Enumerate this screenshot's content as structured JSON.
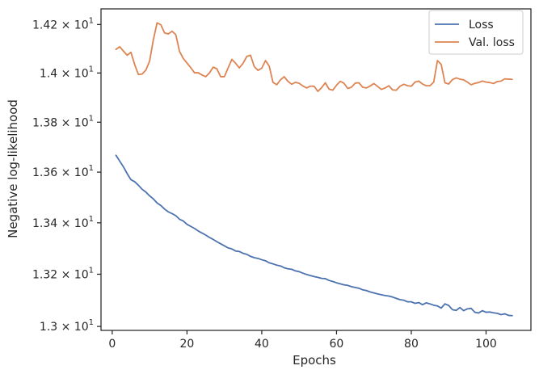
{
  "chart_data": {
    "type": "line",
    "xlabel": "Epochs",
    "ylabel": "Negative log-likelihood",
    "xlim": [
      -3,
      112
    ],
    "ylim": [
      12.985,
      14.265
    ],
    "y_scale": "log",
    "x_ticks": [
      0,
      20,
      40,
      60,
      80,
      100
    ],
    "x_tick_labels": [
      "0",
      "20",
      "40",
      "60",
      "80",
      "100"
    ],
    "y_ticks": [
      {
        "value": 13.0,
        "mantissa": "1.3"
      },
      {
        "value": 13.2,
        "mantissa": "1.32"
      },
      {
        "value": 13.4,
        "mantissa": "1.34"
      },
      {
        "value": 13.6,
        "mantissa": "1.36"
      },
      {
        "value": 13.8,
        "mantissa": "1.38"
      },
      {
        "value": 14.0,
        "mantissa": "1.4"
      },
      {
        "value": 14.2,
        "mantissa": "1.42"
      }
    ],
    "y_tick_multiplier": "× 10",
    "y_tick_exponent": "1",
    "grid": false,
    "legend_position": "top-right",
    "x": [
      1,
      2,
      3,
      4,
      5,
      6,
      7,
      8,
      9,
      10,
      11,
      12,
      13,
      14,
      15,
      16,
      17,
      18,
      19,
      20,
      21,
      22,
      23,
      24,
      25,
      26,
      27,
      28,
      29,
      30,
      31,
      32,
      33,
      34,
      35,
      36,
      37,
      38,
      39,
      40,
      41,
      42,
      43,
      44,
      45,
      46,
      47,
      48,
      49,
      50,
      51,
      52,
      53,
      54,
      55,
      56,
      57,
      58,
      59,
      60,
      61,
      62,
      63,
      64,
      65,
      66,
      67,
      68,
      69,
      70,
      71,
      72,
      73,
      74,
      75,
      76,
      77,
      78,
      79,
      80,
      81,
      82,
      83,
      84,
      85,
      86,
      87,
      88,
      89,
      90,
      91,
      92,
      93,
      94,
      95,
      96,
      97,
      98,
      99,
      100,
      101,
      102,
      103,
      104,
      105,
      106,
      107
    ],
    "series": [
      {
        "name": "Loss",
        "color": "#4c72b0",
        "values": [
          13.667,
          13.644,
          13.621,
          13.594,
          13.57,
          13.562,
          13.548,
          13.532,
          13.521,
          13.506,
          13.494,
          13.478,
          13.468,
          13.454,
          13.443,
          13.436,
          13.428,
          13.414,
          13.407,
          13.394,
          13.386,
          13.378,
          13.368,
          13.36,
          13.352,
          13.343,
          13.335,
          13.326,
          13.318,
          13.31,
          13.302,
          13.298,
          13.29,
          13.288,
          13.281,
          13.277,
          13.269,
          13.264,
          13.261,
          13.256,
          13.252,
          13.244,
          13.24,
          13.235,
          13.232,
          13.225,
          13.221,
          13.219,
          13.213,
          13.21,
          13.204,
          13.199,
          13.195,
          13.191,
          13.188,
          13.184,
          13.183,
          13.176,
          13.172,
          13.167,
          13.163,
          13.159,
          13.157,
          13.152,
          13.149,
          13.146,
          13.14,
          13.137,
          13.132,
          13.128,
          13.124,
          13.121,
          13.118,
          13.116,
          13.112,
          13.107,
          13.102,
          13.1,
          13.094,
          13.094,
          13.088,
          13.091,
          13.083,
          13.09,
          13.086,
          13.081,
          13.078,
          13.07,
          13.086,
          13.08,
          13.064,
          13.061,
          13.072,
          13.06,
          13.067,
          13.069,
          13.054,
          13.051,
          13.06,
          13.054,
          13.055,
          13.052,
          13.05,
          13.045,
          13.048,
          13.042,
          13.041
        ]
      },
      {
        "name": "Val. loss",
        "color": "#dd8452",
        "values": [
          14.097,
          14.108,
          14.09,
          14.073,
          14.085,
          14.035,
          13.994,
          13.996,
          14.012,
          14.049,
          14.137,
          14.207,
          14.199,
          14.165,
          14.161,
          14.172,
          14.158,
          14.089,
          14.06,
          14.041,
          14.022,
          14.001,
          14.001,
          13.992,
          13.985,
          14.0,
          14.024,
          14.017,
          13.985,
          13.985,
          14.021,
          14.056,
          14.04,
          14.021,
          14.04,
          14.068,
          14.073,
          14.026,
          14.011,
          14.02,
          14.051,
          14.028,
          13.962,
          13.952,
          13.972,
          13.985,
          13.966,
          13.954,
          13.962,
          13.958,
          13.947,
          13.939,
          13.946,
          13.946,
          13.925,
          13.94,
          13.96,
          13.934,
          13.93,
          13.95,
          13.966,
          13.958,
          13.937,
          13.942,
          13.959,
          13.96,
          13.942,
          13.939,
          13.947,
          13.957,
          13.945,
          13.933,
          13.939,
          13.948,
          13.931,
          13.93,
          13.946,
          13.954,
          13.948,
          13.946,
          13.963,
          13.967,
          13.955,
          13.948,
          13.948,
          13.963,
          14.051,
          14.035,
          13.96,
          13.955,
          13.973,
          13.98,
          13.975,
          13.972,
          13.963,
          13.952,
          13.958,
          13.961,
          13.967,
          13.963,
          13.961,
          13.957,
          13.965,
          13.967,
          13.976,
          13.975,
          13.974
        ]
      }
    ]
  }
}
